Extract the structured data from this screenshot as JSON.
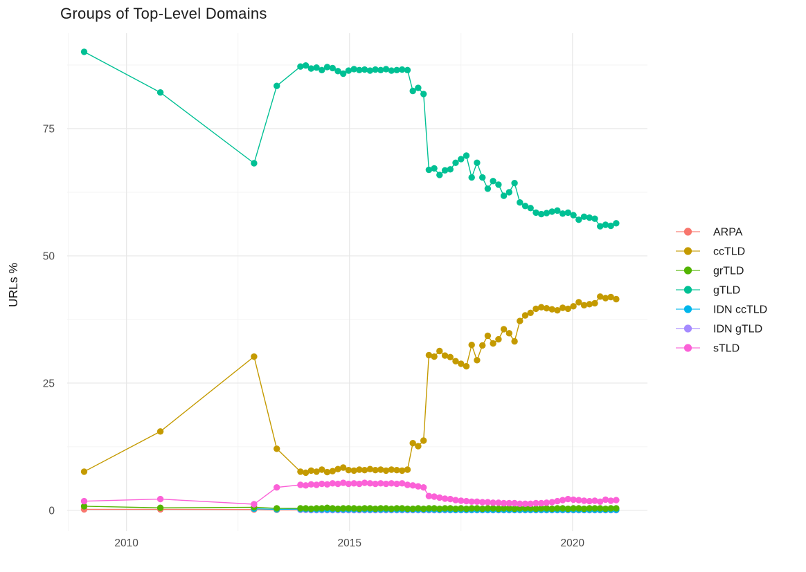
{
  "chart_data": {
    "type": "line",
    "title": "Groups of Top-Level Domains",
    "xlabel": "",
    "ylabel": "URLs %",
    "x_ticks": [
      2010,
      2015,
      2020
    ],
    "y_ticks": [
      0,
      25,
      50,
      75
    ],
    "x_minor_gridlines": [
      2008.7,
      2012.5,
      2017.5
    ],
    "y_minor_gridlines": [
      12.5,
      37.5,
      62.5,
      87.5
    ],
    "xlim": [
      2008.67,
      2021.68
    ],
    "ylim": [
      -4.1,
      93.75
    ],
    "grid": true,
    "legend_position": "right",
    "legend_title": "",
    "marker": "point-on-line",
    "background": "#ffffff",
    "grid_major_color": "#e7e7e7",
    "grid_minor_color": "#f3f3f3",
    "x": [
      2009.05,
      2010.76,
      2012.86,
      2013.37,
      2013.9,
      2014.02,
      2014.14,
      2014.26,
      2014.38,
      2014.5,
      2014.62,
      2014.74,
      2014.86,
      2014.98,
      2015.1,
      2015.22,
      2015.34,
      2015.46,
      2015.58,
      2015.7,
      2015.82,
      2015.94,
      2016.06,
      2016.18,
      2016.3,
      2016.42,
      2016.54,
      2016.66,
      2016.78,
      2016.9,
      2017.02,
      2017.14,
      2017.26,
      2017.38,
      2017.5,
      2017.62,
      2017.74,
      2017.86,
      2017.98,
      2018.1,
      2018.22,
      2018.34,
      2018.46,
      2018.58,
      2018.7,
      2018.82,
      2018.94,
      2019.06,
      2019.18,
      2019.3,
      2019.42,
      2019.54,
      2019.66,
      2019.78,
      2019.9,
      2020.02,
      2020.14,
      2020.26,
      2020.38,
      2020.5,
      2020.62,
      2020.74,
      2020.86,
      2020.98
    ],
    "draw_order": [
      "ARPA",
      "IDN gTLD",
      "IDN ccTLD",
      "grTLD",
      "ccTLD",
      "gTLD",
      "sTLD"
    ],
    "series": [
      {
        "name": "ARPA",
        "color": "#F8766D",
        "values": [
          0.2,
          0.2,
          0.15,
          0.1,
          0.1,
          0.1,
          0.1,
          0.1,
          0.1,
          0.1,
          0.1,
          0.1,
          0.1,
          0.1,
          0.1,
          0.1,
          0.1,
          0.1,
          0.1,
          0.1,
          0.1,
          0.1,
          0.1,
          0.1,
          0.1,
          0.1,
          0.1,
          0.1,
          0.1,
          0.1,
          0.1,
          0.1,
          0.1,
          0.1,
          0.1,
          0.1,
          0.1,
          0.1,
          0.1,
          0.1,
          0.1,
          0.1,
          0.1,
          0.1,
          0.1,
          0.1,
          0.1,
          0.1,
          0.1,
          0.1,
          0.1,
          0.1,
          0.1,
          0.1,
          0.1,
          0.1,
          0.1,
          0.1,
          0.1,
          0.1,
          0.1,
          0.1,
          0.1,
          0.1
        ]
      },
      {
        "name": "ccTLD",
        "color": "#C49A00",
        "values": [
          7.6,
          15.5,
          30.2,
          12.1,
          7.6,
          7.4,
          7.8,
          7.6,
          8.0,
          7.5,
          7.7,
          8.1,
          8.4,
          7.9,
          7.8,
          8.0,
          7.9,
          8.1,
          7.9,
          8.0,
          7.8,
          8.0,
          7.9,
          7.8,
          8.0,
          13.2,
          12.6,
          13.7,
          30.5,
          30.2,
          31.3,
          30.4,
          30.1,
          29.3,
          28.8,
          28.3,
          32.5,
          29.5,
          32.4,
          34.3,
          32.8,
          33.6,
          35.6,
          34.8,
          33.2,
          37.2,
          38.3,
          38.8,
          39.6,
          39.9,
          39.7,
          39.5,
          39.3,
          39.8,
          39.6,
          40.1,
          40.9,
          40.3,
          40.5,
          40.7,
          42.0,
          41.7,
          41.9,
          41.5
        ]
      },
      {
        "name": "grTLD",
        "color": "#53B400",
        "values": [
          0.8,
          0.5,
          0.6,
          0.4,
          0.4,
          0.4,
          0.3,
          0.4,
          0.4,
          0.5,
          0.4,
          0.3,
          0.4,
          0.4,
          0.4,
          0.3,
          0.4,
          0.4,
          0.3,
          0.4,
          0.4,
          0.3,
          0.4,
          0.4,
          0.3,
          0.3,
          0.4,
          0.3,
          0.4,
          0.4,
          0.3,
          0.4,
          0.4,
          0.3,
          0.4,
          0.3,
          0.4,
          0.4,
          0.3,
          0.4,
          0.4,
          0.3,
          0.4,
          0.4,
          0.3,
          0.4,
          0.4,
          0.4,
          0.3,
          0.4,
          0.4,
          0.3,
          0.4,
          0.4,
          0.3,
          0.4,
          0.4,
          0.3,
          0.4,
          0.4,
          0.4,
          0.3,
          0.4,
          0.4
        ]
      },
      {
        "name": "gTLD",
        "color": "#00C094",
        "values": [
          90.1,
          82.1,
          68.2,
          83.4,
          87.2,
          87.4,
          86.8,
          87.0,
          86.5,
          87.1,
          86.9,
          86.3,
          85.8,
          86.4,
          86.7,
          86.5,
          86.6,
          86.4,
          86.6,
          86.5,
          86.7,
          86.4,
          86.5,
          86.6,
          86.5,
          82.4,
          83.0,
          81.8,
          66.9,
          67.2,
          65.9,
          66.8,
          67.0,
          68.3,
          69.0,
          69.7,
          65.4,
          68.3,
          65.4,
          63.2,
          64.7,
          64.0,
          61.8,
          62.5,
          64.3,
          60.5,
          59.8,
          59.4,
          58.5,
          58.2,
          58.4,
          58.7,
          58.9,
          58.3,
          58.5,
          58.0,
          57.1,
          57.7,
          57.5,
          57.3,
          55.8,
          56.1,
          55.9,
          56.4
        ]
      },
      {
        "name": "IDN ccTLD",
        "color": "#00B6EB",
        "values": [
          null,
          null,
          0.3,
          0.2,
          0.25,
          0.25,
          0.2,
          0.2,
          0.2,
          0.2,
          0.2,
          0.2,
          0.2,
          0.2,
          0.2,
          0.2,
          0.2,
          0.15,
          0.2,
          0.15,
          0.2,
          0.15,
          0.15,
          0.15,
          0.15,
          0.15,
          0.15,
          0.15,
          0.15,
          0.15,
          0.1,
          0.15,
          0.1,
          0.1,
          0.1,
          0.1,
          0.1,
          0.1,
          0.1,
          0.1,
          0.1,
          0.1,
          0.1,
          0.1,
          0.1,
          0.1,
          0.1,
          0.1,
          0.1,
          0.1,
          0.1,
          0.1,
          0.1,
          0.1,
          0.1,
          0.1,
          0.1,
          0.1,
          0.1,
          0.1,
          0.1,
          0.1,
          0.1,
          0.1
        ]
      },
      {
        "name": "IDN gTLD",
        "color": "#A58AFF",
        "values": [
          null,
          null,
          null,
          null,
          0.1,
          0.08,
          0.05,
          0.05,
          0.05,
          0.05,
          0.05,
          0.05,
          0.05,
          0.05,
          0.05,
          0.05,
          0.05,
          0.05,
          0.05,
          0.05,
          0.05,
          0.05,
          0.05,
          0.05,
          0.05,
          0.05,
          0.05,
          0.05,
          0.05,
          0.05,
          0.05,
          0.05,
          0.05,
          0.05,
          0.05,
          0.05,
          0.05,
          0.05,
          0.05,
          0.05,
          0.05,
          0.05,
          0.05,
          0.05,
          0.05,
          0.05,
          0.05,
          0.05,
          0.05,
          0.05,
          0.05,
          0.05,
          0.05,
          0.05,
          0.05,
          0.05,
          0.05,
          0.05,
          0.05,
          0.05,
          0.05,
          0.05,
          0.05,
          0.05
        ]
      },
      {
        "name": "sTLD",
        "color": "#FB61D7",
        "values": [
          1.8,
          2.2,
          1.2,
          4.5,
          5.0,
          4.9,
          5.1,
          5.0,
          5.2,
          5.1,
          5.3,
          5.2,
          5.4,
          5.2,
          5.3,
          5.2,
          5.4,
          5.3,
          5.2,
          5.3,
          5.2,
          5.3,
          5.2,
          5.3,
          5.0,
          4.9,
          4.7,
          4.5,
          2.8,
          2.7,
          2.5,
          2.3,
          2.2,
          2.0,
          1.9,
          1.8,
          1.7,
          1.7,
          1.6,
          1.6,
          1.5,
          1.5,
          1.4,
          1.4,
          1.4,
          1.3,
          1.3,
          1.3,
          1.4,
          1.4,
          1.5,
          1.6,
          1.8,
          2.0,
          2.2,
          2.1,
          2.0,
          1.9,
          1.8,
          1.9,
          1.7,
          2.1,
          1.9,
          2.0
        ]
      }
    ]
  }
}
